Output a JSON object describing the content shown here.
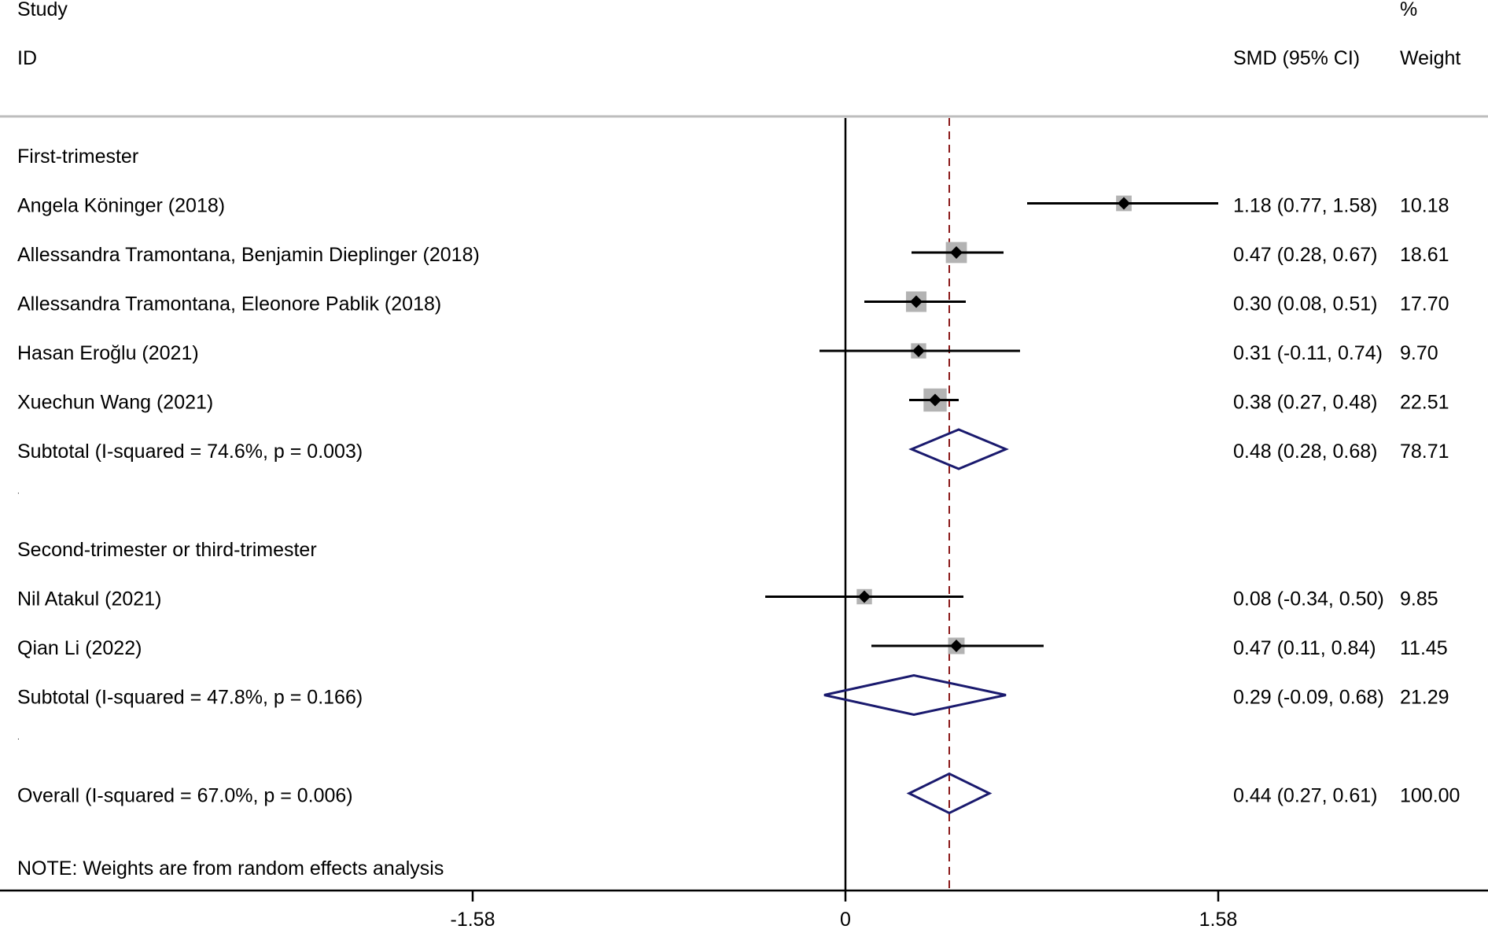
{
  "header": {
    "study_line1": "Study",
    "study_line2": "ID",
    "effect_label": "SMD (95% CI)",
    "weight_line1": "%",
    "weight_line2": "Weight"
  },
  "note": "NOTE: Weights are from random effects analysis",
  "chart_data": {
    "type": "forest",
    "measure": "SMD",
    "xlim": [
      -1.58,
      1.58
    ],
    "x_ticks": [
      -1.58,
      0,
      1.58
    ],
    "x_tick_labels": [
      "-1.58",
      "0",
      "1.58"
    ],
    "null_line": 0,
    "overall_line": 0.44,
    "colors": {
      "study_line": "#000000",
      "weight_box": "#b3b3b3",
      "diamond": "#1a1a6e",
      "overall_line": "#8b1a1a"
    },
    "rows": [
      {
        "kind": "group",
        "label": "First-trimester"
      },
      {
        "kind": "study",
        "label": "Angela Köninger (2018)",
        "est": 1.18,
        "lo": 0.77,
        "hi": 1.58,
        "weight": 10.18,
        "ci_text": "1.18 (0.77, 1.58)",
        "weight_text": "10.18"
      },
      {
        "kind": "study",
        "label": "Allessandra Tramontana, Benjamin Dieplinger (2018)",
        "est": 0.47,
        "lo": 0.28,
        "hi": 0.67,
        "weight": 18.61,
        "ci_text": "0.47 (0.28, 0.67)",
        "weight_text": "18.61"
      },
      {
        "kind": "study",
        "label": "Allessandra Tramontana, Eleonore Pablik (2018)",
        "est": 0.3,
        "lo": 0.08,
        "hi": 0.51,
        "weight": 17.7,
        "ci_text": "0.30 (0.08, 0.51)",
        "weight_text": "17.70"
      },
      {
        "kind": "study",
        "label": "Hasan Eroğlu (2021)",
        "est": 0.31,
        "lo": -0.11,
        "hi": 0.74,
        "weight": 9.7,
        "ci_text": "0.31 (-0.11, 0.74)",
        "weight_text": "9.70"
      },
      {
        "kind": "study",
        "label": "Xuechun Wang  (2021)",
        "est": 0.38,
        "lo": 0.27,
        "hi": 0.48,
        "weight": 22.51,
        "ci_text": "0.38 (0.27, 0.48)",
        "weight_text": "22.51"
      },
      {
        "kind": "subtotal",
        "label": "Subtotal  (I-squared = 74.6%, p = 0.003)",
        "est": 0.48,
        "lo": 0.28,
        "hi": 0.68,
        "weight": 78.71,
        "ci_text": "0.48 (0.28, 0.68)",
        "weight_text": "78.71"
      },
      {
        "kind": "gap",
        "label": "."
      },
      {
        "kind": "group",
        "label": "Second-trimester or third-trimester"
      },
      {
        "kind": "study",
        "label": "Nil Atakul (2021)",
        "est": 0.08,
        "lo": -0.34,
        "hi": 0.5,
        "weight": 9.85,
        "ci_text": "0.08 (-0.34, 0.50)",
        "weight_text": "9.85"
      },
      {
        "kind": "study",
        "label": "Qian Li  (2022)",
        "est": 0.47,
        "lo": 0.11,
        "hi": 0.84,
        "weight": 11.45,
        "ci_text": "0.47 (0.11, 0.84)",
        "weight_text": "11.45"
      },
      {
        "kind": "subtotal",
        "label": "Subtotal  (I-squared = 47.8%, p = 0.166)",
        "est": 0.29,
        "lo": -0.09,
        "hi": 0.68,
        "weight": 21.29,
        "ci_text": "0.29 (-0.09, 0.68)",
        "weight_text": "21.29"
      },
      {
        "kind": "gap",
        "label": "."
      },
      {
        "kind": "overall",
        "label": "Overall  (I-squared = 67.0%, p = 0.006)",
        "est": 0.44,
        "lo": 0.27,
        "hi": 0.61,
        "weight": 100.0,
        "ci_text": "0.44 (0.27, 0.61)",
        "weight_text": "100.00"
      }
    ]
  }
}
